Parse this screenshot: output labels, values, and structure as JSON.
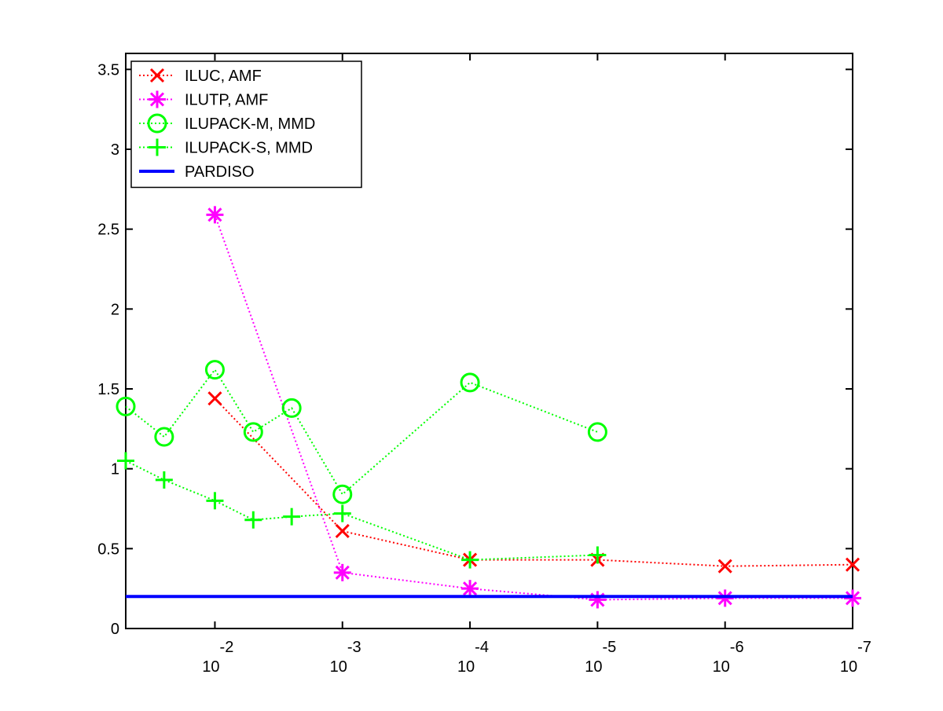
{
  "chart_data": {
    "type": "line",
    "title": "",
    "xlabel": "",
    "ylabel": "",
    "x_scale": "log",
    "xlim": [
      0.05,
      1e-07
    ],
    "ylim": [
      0,
      3.6
    ],
    "x_ticks": [
      {
        "value": 0.01,
        "base": "10",
        "exp": "-2"
      },
      {
        "value": 0.001,
        "base": "10",
        "exp": "-3"
      },
      {
        "value": 0.0001,
        "base": "10",
        "exp": "-4"
      },
      {
        "value": 1e-05,
        "base": "10",
        "exp": "-5"
      },
      {
        "value": 1e-06,
        "base": "10",
        "exp": "-6"
      },
      {
        "value": 1e-07,
        "base": "10",
        "exp": "-7"
      }
    ],
    "y_ticks": [
      {
        "value": 0,
        "label": "0"
      },
      {
        "value": 0.5,
        "label": "0.5"
      },
      {
        "value": 1,
        "label": "1"
      },
      {
        "value": 1.5,
        "label": "1.5"
      },
      {
        "value": 2,
        "label": "2"
      },
      {
        "value": 2.5,
        "label": "2.5"
      },
      {
        "value": 3,
        "label": "3"
      },
      {
        "value": 3.5,
        "label": "3.5"
      }
    ],
    "grid": false,
    "legend_position": "top-left",
    "series": [
      {
        "name": "ILUC, AMF",
        "color": "#ff0000",
        "marker": "x",
        "line_style": "dotted",
        "points": [
          [
            0.01,
            1.44
          ],
          [
            0.001,
            0.61
          ],
          [
            0.0001,
            0.43
          ],
          [
            1e-05,
            0.43
          ],
          [
            1e-06,
            0.39
          ],
          [
            1e-07,
            0.4
          ]
        ]
      },
      {
        "name": "ILUTP, AMF",
        "color": "#ff00ff",
        "marker": "asterisk",
        "line_style": "dotted",
        "points": [
          [
            0.01,
            2.59
          ],
          [
            0.001,
            0.35
          ],
          [
            0.0001,
            0.25
          ],
          [
            1e-05,
            0.18
          ],
          [
            1e-06,
            0.19
          ],
          [
            1e-07,
            0.19
          ]
        ]
      },
      {
        "name": "ILUPACK-M, MMD",
        "color": "#00ff00",
        "marker": "circle",
        "line_style": "dotted",
        "points": [
          [
            0.05,
            1.39
          ],
          [
            0.025,
            1.2
          ],
          [
            0.01,
            1.62
          ],
          [
            0.005,
            1.23
          ],
          [
            0.0025,
            1.38
          ],
          [
            0.001,
            0.84
          ],
          [
            0.0001,
            1.54
          ],
          [
            1e-05,
            1.23
          ]
        ]
      },
      {
        "name": "ILUPACK-S, MMD",
        "color": "#00ff00",
        "marker": "plus",
        "line_style": "dotted",
        "points": [
          [
            0.05,
            1.05
          ],
          [
            0.025,
            0.93
          ],
          [
            0.01,
            0.8
          ],
          [
            0.005,
            0.68
          ],
          [
            0.0025,
            0.7
          ],
          [
            0.001,
            0.72
          ],
          [
            0.0001,
            0.43
          ],
          [
            1e-05,
            0.46
          ]
        ]
      },
      {
        "name": "PARDISO",
        "color": "#0000ff",
        "marker": "none",
        "line_style": "solid",
        "points": [
          [
            0.05,
            0.2
          ],
          [
            1e-07,
            0.2
          ]
        ]
      }
    ]
  }
}
